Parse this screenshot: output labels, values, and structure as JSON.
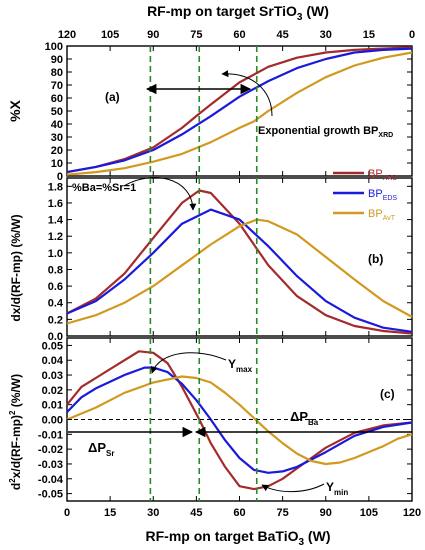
{
  "title_top": {
    "pre": "RF-mp on target SrTiO",
    "sub": "3",
    "post": " (W)"
  },
  "title_bottom": {
    "pre": "RF-mp on target BaTiO",
    "sub": "3",
    "post": " (W)"
  },
  "colors": {
    "xrd": "#a52a2a",
    "eds": "#1a1adc",
    "avt": "#d19a1f",
    "guide": "#2a8a2a",
    "axis": "#000000"
  },
  "legend": {
    "items": [
      {
        "base": "BP",
        "sub": "XRD",
        "color": "#a52a2a"
      },
      {
        "base": "BP",
        "sub": "EDS",
        "color": "#1a1adc"
      },
      {
        "base": "BP",
        "sub": "AvT",
        "color": "#d19a1f"
      }
    ]
  },
  "chart_data": [
    {
      "type": "line",
      "panel": "(a)",
      "ylabel": "%X",
      "xlabel": "RF-mp on target BaTiO3 (W)",
      "top_xlabel": "RF-mp on target SrTiO3 (W)",
      "xlim": [
        0,
        120
      ],
      "ylim": [
        0,
        100
      ],
      "top_x_ticks": [
        "120",
        "105",
        "90",
        "75",
        "60",
        "45",
        "30",
        "15",
        "0"
      ],
      "y_ticks": [
        "0",
        "10",
        "20",
        "30",
        "40",
        "50",
        "60",
        "70",
        "80",
        "90",
        "100"
      ],
      "annotations": [
        {
          "text": "Exponential growth BP",
          "sub": "XRD"
        }
      ],
      "series": [
        {
          "name": "BPXRD",
          "x": [
            0,
            10,
            20,
            30,
            40,
            46,
            50,
            60,
            70,
            80,
            90,
            100,
            110,
            120
          ],
          "y": [
            3,
            7,
            13,
            22,
            37,
            48,
            55,
            72,
            84,
            91,
            95,
            97,
            98,
            99
          ]
        },
        {
          "name": "BPEDS",
          "x": [
            0,
            10,
            20,
            30,
            40,
            50,
            60,
            70,
            80,
            90,
            100,
            110,
            120
          ],
          "y": [
            3,
            7,
            12,
            20,
            32,
            46,
            61,
            73,
            83,
            90,
            95,
            97,
            98
          ]
        },
        {
          "name": "BPAvT",
          "x": [
            0,
            10,
            20,
            30,
            40,
            50,
            60,
            65,
            70,
            80,
            90,
            100,
            110,
            120
          ],
          "y": [
            1,
            3,
            6,
            11,
            17,
            26,
            37,
            42,
            50,
            64,
            76,
            85,
            91,
            95
          ]
        }
      ]
    },
    {
      "type": "line",
      "panel": "(b)",
      "ylabel": "dx/d(RF-mp)  (%/W)",
      "xlim": [
        0,
        120
      ],
      "ylim": [
        0,
        1.9
      ],
      "y_ticks": [
        "0.0",
        "0.2",
        "0.4",
        "0.6",
        "0.8",
        "1.0",
        "1.2",
        "1.4",
        "1.6",
        "1.8"
      ],
      "annotations": [
        {
          "text": "%Ba=%Sr=1"
        }
      ],
      "series": [
        {
          "name": "BPXRD",
          "x": [
            0,
            10,
            20,
            30,
            40,
            46,
            50,
            60,
            70,
            80,
            90,
            100,
            110,
            120
          ],
          "y": [
            0.27,
            0.45,
            0.75,
            1.18,
            1.6,
            1.75,
            1.72,
            1.35,
            0.85,
            0.48,
            0.25,
            0.12,
            0.06,
            0.03
          ]
        },
        {
          "name": "BPEDS",
          "x": [
            0,
            10,
            20,
            30,
            40,
            50,
            60,
            70,
            80,
            90,
            100,
            110,
            120
          ],
          "y": [
            0.27,
            0.42,
            0.68,
            1.0,
            1.35,
            1.52,
            1.4,
            1.08,
            0.72,
            0.42,
            0.22,
            0.1,
            0.05
          ]
        },
        {
          "name": "BPAvT",
          "x": [
            0,
            10,
            20,
            30,
            40,
            50,
            60,
            66,
            70,
            80,
            90,
            100,
            110,
            120
          ],
          "y": [
            0.15,
            0.25,
            0.4,
            0.6,
            0.85,
            1.1,
            1.32,
            1.4,
            1.38,
            1.22,
            0.95,
            0.68,
            0.42,
            0.23
          ]
        }
      ]
    },
    {
      "type": "line",
      "panel": "(c)",
      "ylabel": "d2x/d(RF-mp)2  (%/W)",
      "xlabel": "RF-mp on target BaTiO3 (W)",
      "xlim": [
        0,
        120
      ],
      "ylim": [
        -0.055,
        0.055
      ],
      "x_ticks": [
        "0",
        "15",
        "30",
        "45",
        "60",
        "75",
        "90",
        "105",
        "120"
      ],
      "y_ticks": [
        "-0.05",
        "-0.04",
        "-0.03",
        "-0.02",
        "-0.01",
        "0.00",
        "0.01",
        "0.02",
        "0.03",
        "0.04",
        "0.05"
      ],
      "annotations": [
        {
          "text": "Y",
          "sub": "max"
        },
        {
          "text": "Y",
          "sub": "min"
        },
        {
          "text": "ΔP",
          "sub": "Sr"
        },
        {
          "text": "ΔP",
          "sub": "Ba"
        }
      ],
      "series": [
        {
          "name": "BPXRD",
          "x": [
            0,
            5,
            10,
            20,
            25,
            30,
            35,
            40,
            46,
            50,
            55,
            60,
            65,
            70,
            75,
            80,
            90,
            100,
            110,
            120
          ],
          "y": [
            0.01,
            0.022,
            0.028,
            0.04,
            0.046,
            0.045,
            0.038,
            0.022,
            0.0,
            -0.016,
            -0.032,
            -0.045,
            -0.047,
            -0.045,
            -0.04,
            -0.033,
            -0.019,
            -0.009,
            -0.004,
            -0.002
          ]
        },
        {
          "name": "BPEDS",
          "x": [
            0,
            5,
            10,
            20,
            27,
            30,
            35,
            40,
            45,
            50,
            55,
            60,
            65,
            70,
            75,
            80,
            90,
            100,
            110,
            120
          ],
          "y": [
            0.005,
            0.015,
            0.021,
            0.03,
            0.035,
            0.035,
            0.032,
            0.024,
            0.013,
            0.0,
            -0.014,
            -0.026,
            -0.034,
            -0.036,
            -0.035,
            -0.032,
            -0.022,
            -0.011,
            -0.005,
            -0.002
          ]
        },
        {
          "name": "BPAvT",
          "x": [
            0,
            10,
            20,
            30,
            40,
            45,
            50,
            55,
            60,
            65,
            70,
            75,
            80,
            85,
            90,
            95,
            100,
            110,
            115,
            120
          ],
          "y": [
            0.0,
            0.008,
            0.018,
            0.025,
            0.029,
            0.028,
            0.025,
            0.018,
            0.01,
            0.001,
            -0.008,
            -0.016,
            -0.023,
            -0.028,
            -0.03,
            -0.029,
            -0.026,
            -0.018,
            -0.013,
            -0.01
          ]
        }
      ]
    }
  ]
}
